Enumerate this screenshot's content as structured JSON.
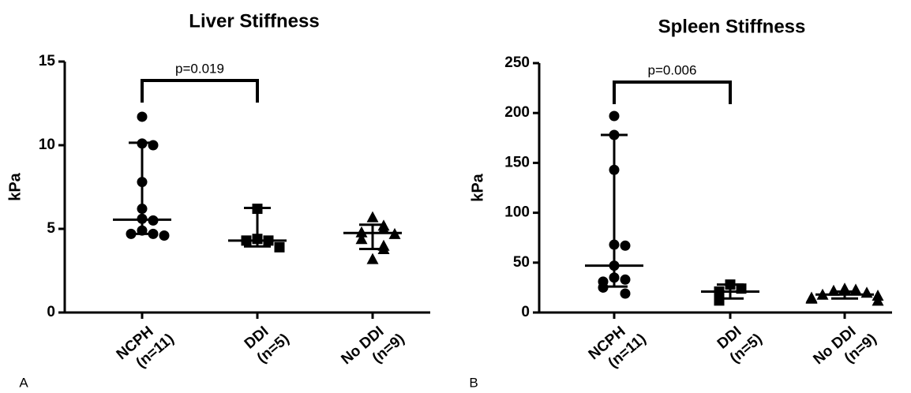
{
  "chart_data": [
    {
      "type": "dot",
      "panel": "A",
      "title": "Liver Stiffness",
      "y_label": "kPa",
      "categories": [
        [
          "NCPH",
          "(n=11)"
        ],
        [
          "DDI",
          "(n=5)"
        ],
        [
          "No DDI",
          "(n=9)"
        ]
      ],
      "markers": [
        "circle",
        "square",
        "triangle"
      ],
      "color": "#000000",
      "values": [
        [
          11.7,
          10.1,
          10.0,
          7.8,
          6.2,
          5.6,
          5.5,
          4.9,
          4.7,
          4.7,
          4.6
        ],
        [
          6.2,
          4.4,
          4.3,
          4.3,
          3.9
        ],
        [
          5.7,
          5.2,
          5.0,
          4.8,
          4.7,
          4.4,
          4.0,
          3.8,
          3.2
        ]
      ],
      "medians": [
        5.55,
        4.3,
        4.75
      ],
      "upper": [
        10.15,
        6.25,
        5.25
      ],
      "lower": [
        4.7,
        3.95,
        3.8
      ],
      "ylim": [
        0,
        15
      ],
      "yticks": [
        0,
        5,
        10,
        15
      ],
      "annotation": {
        "text": "p=0.019",
        "from": 0,
        "to": 1
      }
    },
    {
      "type": "dot",
      "panel": "B",
      "title": "Spleen Stiffness",
      "y_label": "kPa",
      "categories": [
        [
          "NCPH",
          "(n=11)"
        ],
        [
          "DDI",
          "(n=5)"
        ],
        [
          "No DDI",
          "(n=9)"
        ]
      ],
      "markers": [
        "circle",
        "square",
        "triangle"
      ],
      "color": "#000000",
      "values": [
        [
          197,
          178,
          143,
          68,
          67,
          47,
          35,
          33,
          31,
          25,
          19
        ],
        [
          28,
          24,
          21,
          16,
          12
        ],
        [
          24,
          23,
          22,
          20,
          18,
          17,
          15,
          14,
          12
        ]
      ],
      "medians": [
        47,
        21,
        18
      ],
      "upper": [
        178,
        28,
        21
      ],
      "lower": [
        26,
        14,
        14
      ],
      "ylim": [
        0,
        250
      ],
      "yticks": [
        0,
        50,
        100,
        150,
        200,
        250
      ],
      "annotation": {
        "text": "p=0.006",
        "from": 0,
        "to": 1
      }
    }
  ]
}
